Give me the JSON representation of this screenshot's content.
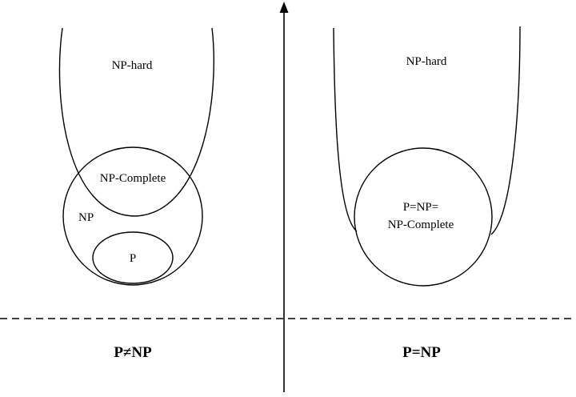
{
  "left_panel": {
    "np_hard_label": "NP-hard",
    "np_complete_label": "NP-Complete",
    "np_label": "NP",
    "p_label": "P",
    "title": "P≠NP"
  },
  "right_panel": {
    "np_hard_label": "NP-hard",
    "merged_label_line1": "P=NP=",
    "merged_label_line2": "NP-Complete",
    "title": "P=NP"
  },
  "colors": {
    "ink": "#000000",
    "background": "#ffffff"
  }
}
